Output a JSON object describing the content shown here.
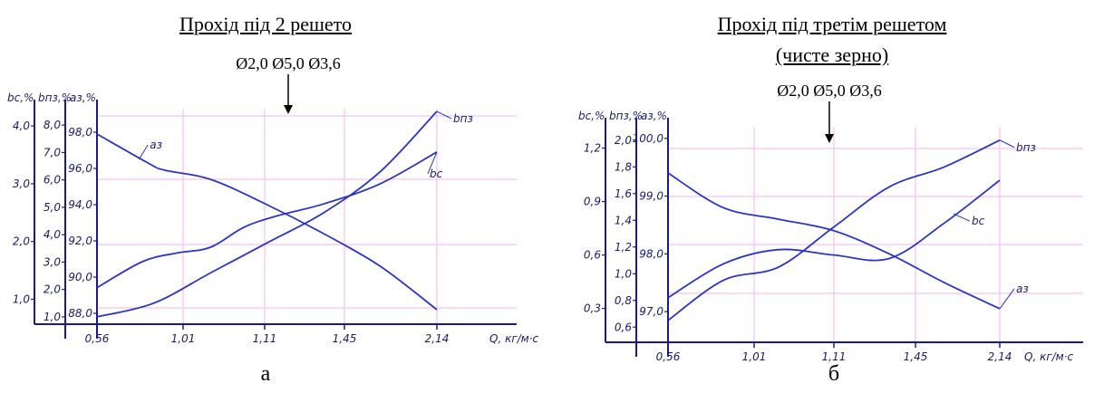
{
  "panel_a": {
    "title": "Прохід під 2 решето",
    "sieves": "Ø2,0 Ø5,0 Ø3,6",
    "label": "а"
  },
  "panel_b": {
    "title_line1": "Прохід під третім решетом",
    "title_line2": "(чисте зерно)",
    "sieves": "Ø2,0 Ø5,0 Ø3,6",
    "label": "б"
  },
  "colors": {
    "curve": "#2a35c8",
    "axis": "#1a1a8e",
    "grid": "#f2b6f2"
  },
  "chart_data": [
    {
      "type": "line",
      "x_label": "Q, кг/м·с",
      "categories": [
        "0,56",
        "1,01",
        "1,11",
        "1,45",
        "2,14"
      ],
      "axes": [
        {
          "label": "bc,%",
          "ticks": [
            "1,0",
            "2,0",
            "3,0",
            "4,0"
          ],
          "range": [
            0.6,
            4.3
          ]
        },
        {
          "label": "bпз,%",
          "ticks": [
            "1,0",
            "2,0",
            "3,0",
            "4,0",
            "5,0",
            "6,0",
            "7,0",
            "8,0"
          ],
          "range": [
            0.8,
            8.6
          ]
        },
        {
          "label": "aз,%",
          "ticks": [
            "88,0",
            "90,0",
            "92,0",
            "94,0",
            "96,0",
            "98,0"
          ],
          "range": [
            87.5,
            99.3
          ]
        }
      ],
      "series": [
        {
          "name": "aз",
          "axis": 2,
          "values": [
            [
              0.0,
              97.9
            ],
            [
              0.45,
              96.3
            ],
            [
              0.6,
              95.9
            ],
            [
              1.0,
              95.4
            ],
            [
              1.5,
              94.0
            ],
            [
              2.0,
              92.4
            ],
            [
              2.5,
              90.6
            ],
            [
              3.0,
              88.2
            ]
          ]
        },
        {
          "name": "bпз",
          "axis": 1,
          "values": [
            [
              0.0,
              1.0
            ],
            [
              0.5,
              1.5
            ],
            [
              1.0,
              2.6
            ],
            [
              1.5,
              3.7
            ],
            [
              2.0,
              4.8
            ],
            [
              2.5,
              6.3
            ],
            [
              3.0,
              8.5
            ]
          ]
        },
        {
          "name": "bc",
          "axis": 0,
          "values": [
            [
              0.0,
              1.2
            ],
            [
              0.4,
              1.65
            ],
            [
              0.7,
              1.8
            ],
            [
              1.0,
              1.9
            ],
            [
              1.3,
              2.25
            ],
            [
              1.6,
              2.45
            ],
            [
              2.0,
              2.65
            ],
            [
              2.5,
              3.0
            ],
            [
              3.0,
              3.55
            ]
          ]
        }
      ],
      "curve_labels": [
        "aз",
        "bпз",
        "bc"
      ],
      "grid": true
    },
    {
      "type": "line",
      "x_label": "Q, кг/м·с",
      "categories": [
        "0,56",
        "1,01",
        "1,11",
        "1,45",
        "2,14"
      ],
      "axes": [
        {
          "label": "bc,%",
          "ticks": [
            "0,3",
            "0,6",
            "0,9",
            "1,2"
          ],
          "range": [
            0.12,
            1.32
          ]
        },
        {
          "label": "bпз,%",
          "ticks": [
            "0,6",
            "0,8",
            "1,0",
            "1,2",
            "1,4",
            "1,6",
            "1,8",
            "2,0"
          ],
          "range": [
            0.5,
            2.1
          ]
        },
        {
          "label": "aз,%",
          "ticks": [
            "97,0",
            "98,0",
            "99,0",
            "100,0"
          ],
          "range": [
            96.5,
            100.2
          ]
        }
      ],
      "series": [
        {
          "name": "aз",
          "axis": 2,
          "values": [
            [
              0.0,
              99.4
            ],
            [
              0.5,
              98.8
            ],
            [
              1.0,
              98.6
            ],
            [
              1.5,
              98.4
            ],
            [
              2.0,
              98.0
            ],
            [
              2.5,
              97.5
            ],
            [
              3.0,
              97.05
            ]
          ]
        },
        {
          "name": "bпз",
          "axis": 1,
          "values": [
            [
              0.0,
              0.65
            ],
            [
              0.5,
              0.95
            ],
            [
              1.0,
              1.05
            ],
            [
              1.5,
              1.35
            ],
            [
              2.0,
              1.65
            ],
            [
              2.5,
              1.8
            ],
            [
              3.0,
              2.0
            ]
          ]
        },
        {
          "name": "bc",
          "axis": 0,
          "values": [
            [
              0.0,
              0.36
            ],
            [
              0.5,
              0.55
            ],
            [
              1.0,
              0.63
            ],
            [
              1.5,
              0.6
            ],
            [
              2.0,
              0.58
            ],
            [
              2.5,
              0.78
            ],
            [
              3.0,
              1.02
            ]
          ]
        }
      ],
      "curve_labels": [
        "aз",
        "bпз",
        "bc"
      ],
      "grid": true
    }
  ]
}
